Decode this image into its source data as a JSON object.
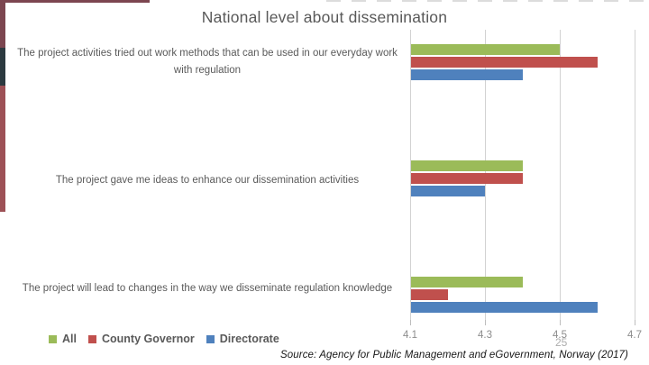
{
  "slide": {
    "title": "National level about dissemination",
    "page_number": "25",
    "source": "Source: Agency for Public Management and eGovernment, Norway (2017)"
  },
  "chart_data": {
    "type": "bar",
    "orientation": "horizontal",
    "title": "National level about dissemination",
    "categories": [
      "The project activities tried out work methods that can be used in our everyday work with regulation",
      "The project gave me ideas to enhance our dissemination activities",
      "The project will lead to changes in the way we disseminate regulation knowledge"
    ],
    "series": [
      {
        "name": "All",
        "color": "#9BBB59",
        "values": [
          4.5,
          4.4,
          4.4
        ]
      },
      {
        "name": "County Governor",
        "color": "#C0504D",
        "values": [
          4.6,
          4.4,
          4.2
        ]
      },
      {
        "name": "Directorate",
        "color": "#4F81BD",
        "values": [
          4.4,
          4.3,
          4.6
        ]
      }
    ],
    "xlim": [
      4.1,
      4.7
    ],
    "xticks": [
      "4.1",
      "4.3",
      "4.5",
      "4.7"
    ],
    "grid": true,
    "legend_position": "bottom-left"
  },
  "colors": {
    "title_text": "#595959",
    "category_label": "#5a5a5a",
    "tick_label": "#8c8c8c",
    "gridline": "#d2d2d2",
    "legend_text": "#595959",
    "page_number": "#adadad",
    "source_text": "#161616",
    "frame_maroon": "#7c4650",
    "frame_slate": "#2c3a40",
    "frame_red": "#9d5156"
  }
}
